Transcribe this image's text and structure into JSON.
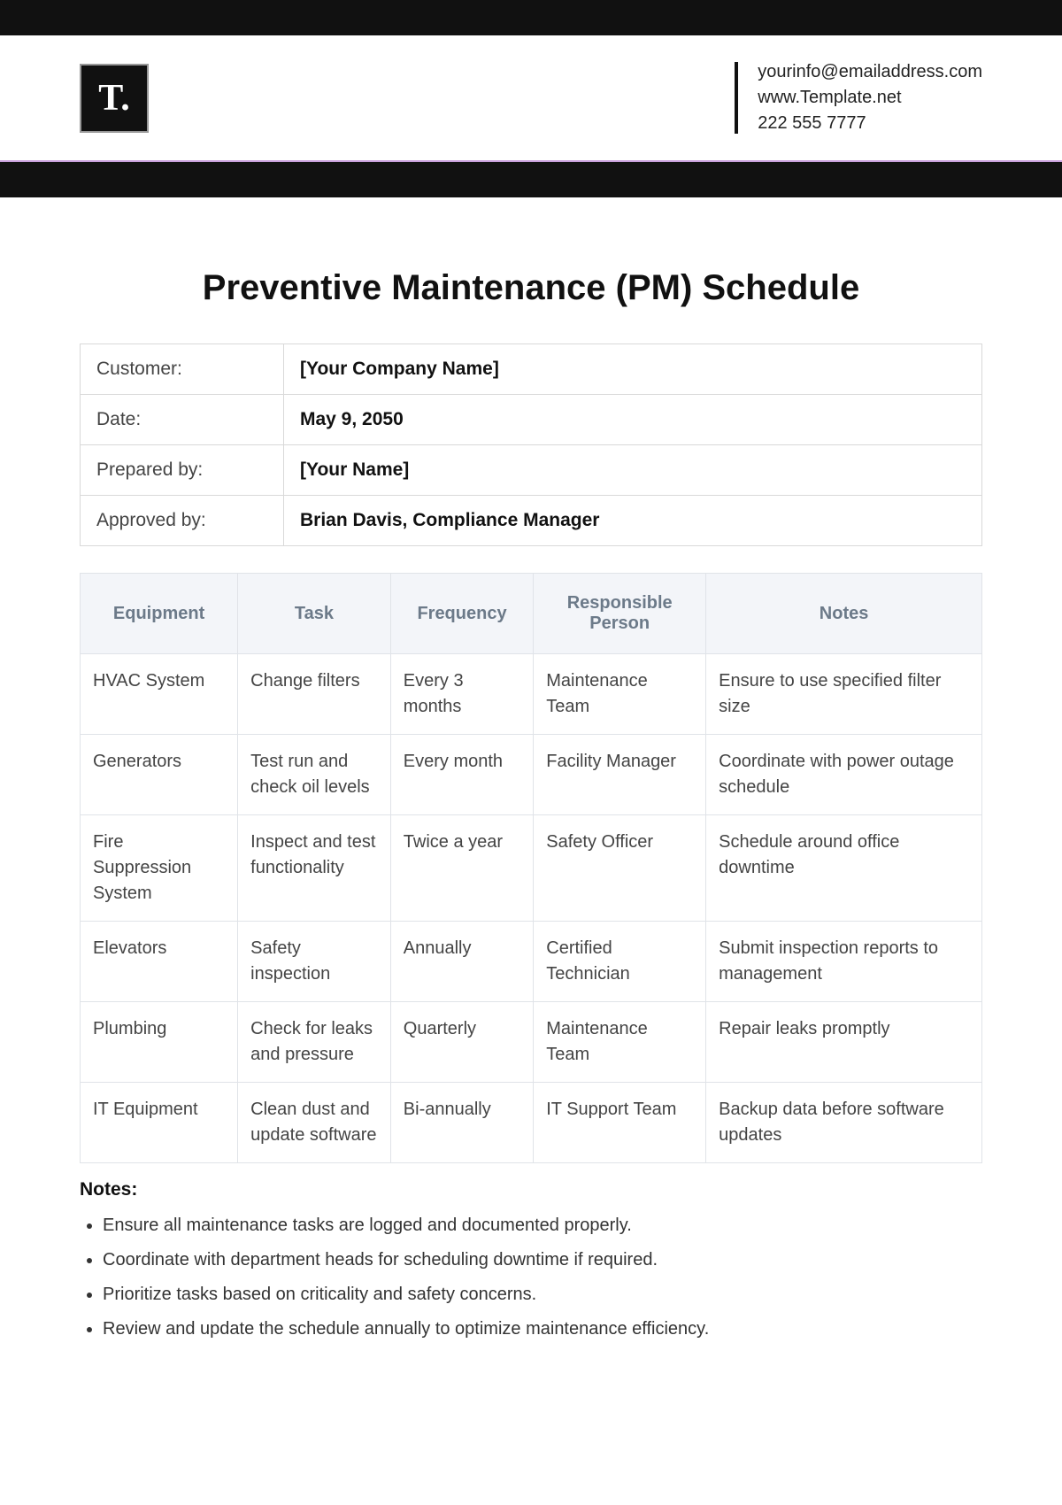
{
  "logo": {
    "text": "T."
  },
  "contact": {
    "email": "yourinfo@emailaddress.com",
    "website": "www.Template.net",
    "phone": "222 555 7777"
  },
  "title": "Preventive Maintenance (PM) Schedule",
  "meta": {
    "labels": {
      "customer": "Customer:",
      "date": "Date:",
      "prepared": "Prepared by:",
      "approved": "Approved by:"
    },
    "values": {
      "customer": "[Your Company Name]",
      "date": "May 9, 2050",
      "prepared": "[Your Name]",
      "approved": "Brian Davis, Compliance Manager"
    }
  },
  "schedule": {
    "columns": [
      "Equipment",
      "Task",
      "Frequency",
      "Responsible Person",
      "Notes"
    ],
    "rows": [
      {
        "equipment": "HVAC System",
        "task": "Change filters",
        "frequency": "Every 3 months",
        "responsible": "Maintenance Team",
        "notes": "Ensure to use specified filter size"
      },
      {
        "equipment": "Generators",
        "task": "Test run and check oil levels",
        "frequency": "Every month",
        "responsible": "Facility Manager",
        "notes": "Coordinate with power outage schedule"
      },
      {
        "equipment": "Fire Suppression System",
        "task": "Inspect and test functionality",
        "frequency": "Twice a year",
        "responsible": "Safety Officer",
        "notes": "Schedule around office downtime"
      },
      {
        "equipment": "Elevators",
        "task": "Safety inspection",
        "frequency": "Annually",
        "responsible": "Certified Technician",
        "notes": "Submit inspection reports to management"
      },
      {
        "equipment": "Plumbing",
        "task": "Check for leaks and pressure",
        "frequency": "Quarterly",
        "responsible": "Maintenance Team",
        "notes": "Repair leaks promptly"
      },
      {
        "equipment": "IT Equipment",
        "task": "Clean dust and update software",
        "frequency": "Bi-annually",
        "responsible": "IT Support Team",
        "notes": "Backup data before software updates"
      }
    ]
  },
  "notesSection": {
    "heading": "Notes:",
    "items": [
      "Ensure all maintenance tasks are logged and documented properly.",
      "Coordinate with department heads for scheduling downtime if required.",
      "Prioritize tasks based on criticality and safety concerns.",
      "Review and update the schedule annually to optimize maintenance efficiency."
    ]
  },
  "styling": {
    "topbar_bg": "#111111",
    "purple_line": "#c9a0dc",
    "header_bg": "#f3f5f9",
    "border_color": "#e0e3e8",
    "text_color": "#444444"
  }
}
